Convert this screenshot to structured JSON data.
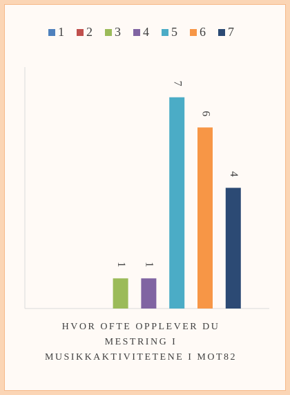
{
  "chart_data": {
    "type": "bar",
    "categories": [
      "HVOR OFTE OPPLEVER DU MESTRING I MUSIKKAKTIVITETENE I MOT82"
    ],
    "series": [
      {
        "name": "1",
        "color": "#4f81bd",
        "values": [
          0
        ]
      },
      {
        "name": "2",
        "color": "#c0504d",
        "values": [
          0
        ]
      },
      {
        "name": "3",
        "color": "#9bbb59",
        "values": [
          1
        ]
      },
      {
        "name": "4",
        "color": "#8064a2",
        "values": [
          1
        ]
      },
      {
        "name": "5",
        "color": "#4bacc6",
        "values": [
          7
        ]
      },
      {
        "name": "6",
        "color": "#f79646",
        "values": [
          6
        ]
      },
      {
        "name": "7",
        "color": "#2c4a74",
        "values": [
          4
        ]
      }
    ],
    "ylim": [
      0,
      8
    ]
  }
}
